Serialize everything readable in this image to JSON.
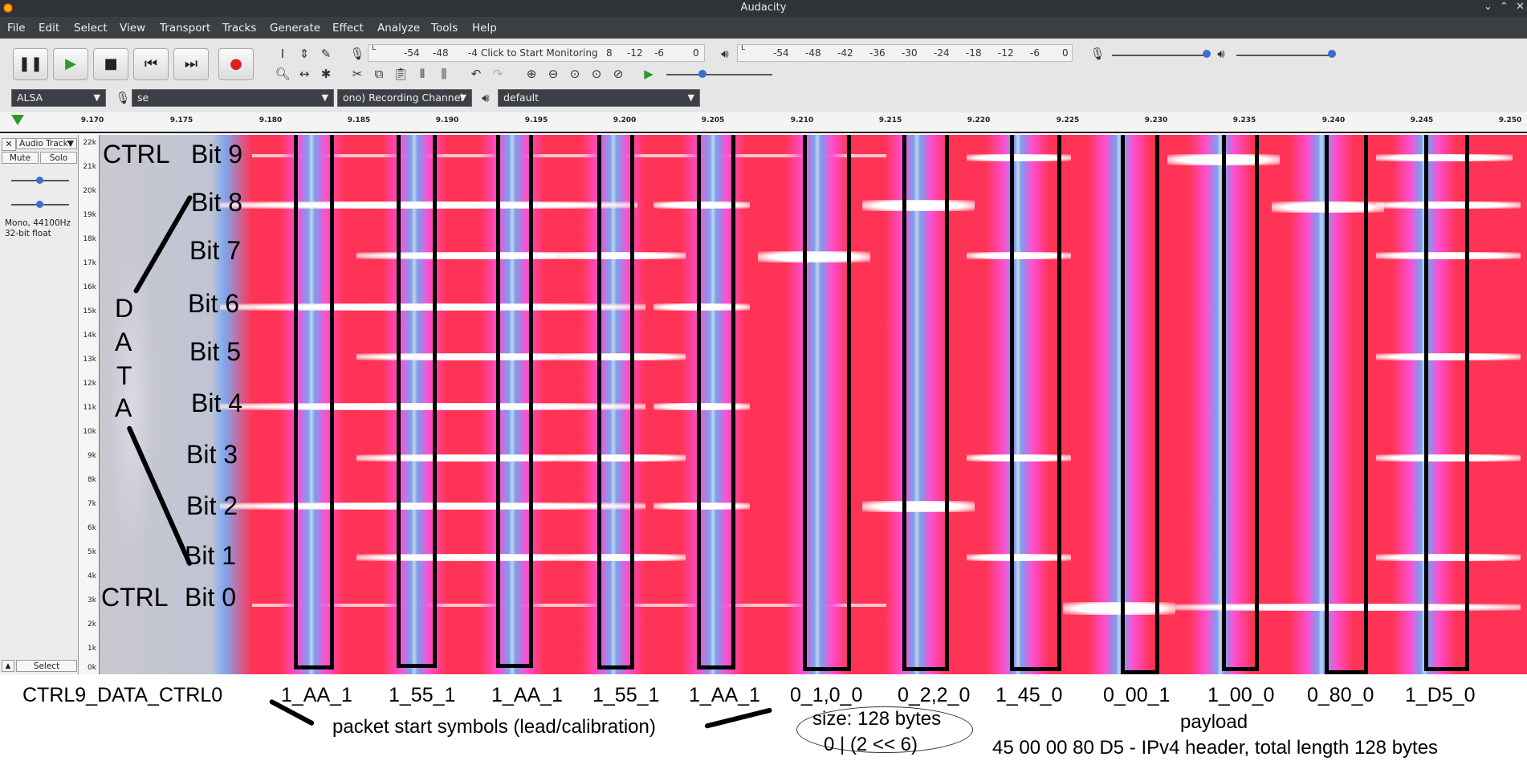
{
  "window": {
    "title": "Audacity"
  },
  "menu": [
    "File",
    "Edit",
    "Select",
    "View",
    "Transport",
    "Tracks",
    "Generate",
    "Effect",
    "Analyze",
    "Tools",
    "Help"
  ],
  "transport": {
    "pause": "pause-icon",
    "play": "play-icon",
    "stop": "stop-icon",
    "skip_start": "skip-start-icon",
    "skip_end": "skip-end-icon",
    "record": "record-icon"
  },
  "recording_meter": {
    "ticks": [
      "-54",
      "-48",
      "-4"
    ],
    "prompt": "Click to Start Monitoring",
    "ticks_after": [
      "8",
      "-12",
      "-6",
      "0"
    ]
  },
  "playback_meter": {
    "ticks": [
      "-54",
      "-48",
      "-42",
      "-36",
      "-30",
      "-24",
      "-18",
      "-12",
      "-6",
      "0"
    ]
  },
  "device": {
    "host": "ALSA",
    "recording_device": "se",
    "channels": "ono) Recording Channel",
    "playback_device": "default"
  },
  "timeline": {
    "labels": [
      "9.170",
      "9.175",
      "9.180",
      "9.185",
      "9.190",
      "9.195",
      "9.200",
      "9.205",
      "9.210",
      "9.215",
      "9.220",
      "9.225",
      "9.230",
      "9.235",
      "9.240",
      "9.245",
      "9.250"
    ]
  },
  "track": {
    "name": "Audio Track",
    "mute": "Mute",
    "solo": "Solo",
    "info_line1": "Mono, 44100Hz",
    "info_line2": "32-bit float",
    "select": "Select"
  },
  "freq_axis": {
    "labels": [
      "22k",
      "21k",
      "20k",
      "19k",
      "18k",
      "17k",
      "16k",
      "15k",
      "14k",
      "13k",
      "12k",
      "11k",
      "10k",
      "9k",
      "8k",
      "7k",
      "6k",
      "5k",
      "4k",
      "3k",
      "2k",
      "1k",
      "0k"
    ]
  },
  "annotations": {
    "bits": [
      "Bit 9",
      "Bit 8",
      "Bit 7",
      "Bit 6",
      "Bit 5",
      "Bit 4",
      "Bit 3",
      "Bit 2",
      "Bit 1",
      "Bit 0"
    ],
    "ctrl_top": "CTRL",
    "ctrl_bottom": "CTRL",
    "data_letters": [
      "D",
      "A",
      "T",
      "A"
    ],
    "symbols": [
      "CTRL9_DATA_CTRL0",
      "1_AA_1",
      "1_55_1",
      "1_AA_1",
      "1_55_1",
      "1_AA_1",
      "0_1,0_0",
      "0_2,2_0",
      "1_45_0",
      "0_00_1",
      "1_00_0",
      "0_80_0",
      "1_D5_0"
    ],
    "start_note": "packet start symbols (lead/calibration)",
    "size_line1": "size: 128 bytes",
    "size_line2": "0 | (2 << 6)",
    "payload_title": "payload",
    "payload_desc": "45 00 00 80 D5 - IPv4 header, total length 128 bytes"
  }
}
